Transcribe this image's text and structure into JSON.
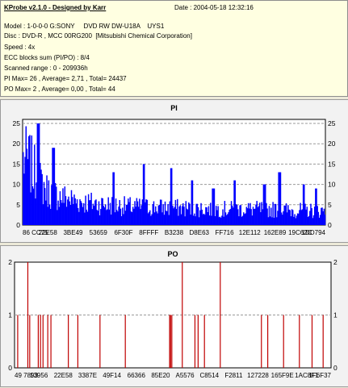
{
  "header": {
    "title": "KProbe v2.1.0 - Designed by Karr",
    "date": "Date : 2004-05-18 12:32:16",
    "lines": [
      "Model : 1-0-0-0 G:SONY     DVD RW DW-U18A    UYS1",
      "Disc : DVD-R , MCC 00RG200  [Mitsubishi Chemical Corporation]",
      "Speed : 4x",
      "ECC blocks sum (PI/PO) : 8/4",
      "Scanned range : 0 - 209936h",
      "PI Max= 26 , Average= 2,71 , Total= 24437",
      "PO Max= 2 , Average= 0,00 , Total= 44"
    ]
  },
  "chart_data": [
    {
      "type": "bar",
      "title": "PI",
      "ylim": [
        0,
        26
      ],
      "y_ticks": [
        0,
        5,
        10,
        15,
        20,
        25
      ],
      "grid": true,
      "bar_color": "#0000ff",
      "x_ticks": [
        "86 CC75",
        "22E58",
        "3BE49",
        "53659",
        "6F30F",
        "8FFFF",
        "B3238",
        "D8E63",
        "FF716",
        "12E112",
        "162E89",
        "19C62C",
        "1DD794"
      ],
      "n_samples": 320,
      "envelope": [
        [
          0,
          25
        ],
        [
          0.02,
          24
        ],
        [
          0.05,
          17
        ],
        [
          0.08,
          13
        ],
        [
          0.12,
          11
        ],
        [
          0.18,
          9
        ],
        [
          0.25,
          8
        ],
        [
          0.35,
          7
        ],
        [
          0.5,
          6.5
        ],
        [
          0.65,
          6
        ],
        [
          0.8,
          6
        ],
        [
          0.9,
          5.5
        ],
        [
          1.0,
          5.5
        ]
      ],
      "peaks": [
        {
          "x": 0.05,
          "value": 25
        },
        {
          "x": 0.1,
          "value": 19
        },
        {
          "x": 0.3,
          "value": 13
        },
        {
          "x": 0.4,
          "value": 15
        },
        {
          "x": 0.49,
          "value": 14
        },
        {
          "x": 0.56,
          "value": 11
        },
        {
          "x": 0.63,
          "value": 9
        },
        {
          "x": 0.7,
          "value": 11
        },
        {
          "x": 0.8,
          "value": 10
        },
        {
          "x": 0.85,
          "value": 13
        },
        {
          "x": 0.93,
          "value": 10
        },
        {
          "x": 0.97,
          "value": 9
        }
      ]
    },
    {
      "type": "bar",
      "title": "PO",
      "ylim": [
        0,
        2
      ],
      "y_ticks": [
        0,
        1,
        2
      ],
      "grid": true,
      "bar_color": "#c00000",
      "x_ticks": [
        "49 7893",
        "13956",
        "22E58",
        "3387E",
        "49F14",
        "66366",
        "85E20",
        "A5576",
        "C8514",
        "F2811",
        "127228",
        "165F9E",
        "1AC8F1",
        "1F6F37"
      ],
      "bars": [
        {
          "x": 0.01,
          "value": 1
        },
        {
          "x": 0.042,
          "value": 2
        },
        {
          "x": 0.048,
          "value": 1
        },
        {
          "x": 0.075,
          "value": 1
        },
        {
          "x": 0.082,
          "value": 1
        },
        {
          "x": 0.09,
          "value": 1
        },
        {
          "x": 0.105,
          "value": 1
        },
        {
          "x": 0.115,
          "value": 1
        },
        {
          "x": 0.17,
          "value": 1
        },
        {
          "x": 0.2,
          "value": 1
        },
        {
          "x": 0.27,
          "value": 1
        },
        {
          "x": 0.35,
          "value": 1
        },
        {
          "x": 0.49,
          "value": 1
        },
        {
          "x": 0.493,
          "value": 1
        },
        {
          "x": 0.497,
          "value": 1
        },
        {
          "x": 0.53,
          "value": 2
        },
        {
          "x": 0.57,
          "value": 1
        },
        {
          "x": 0.58,
          "value": 1
        },
        {
          "x": 0.6,
          "value": 1
        },
        {
          "x": 0.65,
          "value": 2
        },
        {
          "x": 0.78,
          "value": 1
        },
        {
          "x": 0.8,
          "value": 1
        },
        {
          "x": 0.85,
          "value": 1
        },
        {
          "x": 0.9,
          "value": 1
        },
        {
          "x": 0.94,
          "value": 1
        },
        {
          "x": 0.975,
          "value": 1
        }
      ]
    }
  ]
}
